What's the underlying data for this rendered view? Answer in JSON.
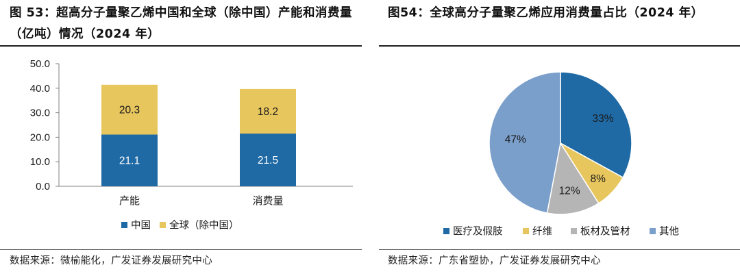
{
  "left_panel": {
    "title": "图 53：超高分子量聚乙烯中国和全球（除中国）产能和消费量（亿吨）情况（2024 年）",
    "source": "数据来源：微榆能化，广发证券发展研究中心"
  },
  "right_panel": {
    "title": "图54：全球高分子量聚乙烯应用消费量占比（2024 年）",
    "source": "数据来源：广东省塑协，广发证券发展研究中心"
  },
  "chart_data": [
    {
      "type": "bar",
      "stacked": true,
      "categories": [
        "产能",
        "消费量"
      ],
      "series": [
        {
          "name": "中国",
          "values": [
            21.1,
            21.5
          ],
          "color": "#1f6aa5",
          "labels": [
            "21.1",
            "21.5"
          ]
        },
        {
          "name": "全球（除中国）",
          "values": [
            20.3,
            18.2
          ],
          "color": "#e8c65e",
          "labels": [
            "20.3",
            "18.2"
          ]
        }
      ],
      "y_ticks": [
        "0.0",
        "10.0",
        "20.0",
        "30.0",
        "40.0",
        "50.0"
      ],
      "ylim": [
        0,
        50
      ],
      "grid": false,
      "legend_position": "bottom"
    },
    {
      "type": "pie",
      "slices": [
        {
          "name": "医疗及假肢",
          "value": 33,
          "label": "33%",
          "color": "#1f6aa5"
        },
        {
          "name": "纤维",
          "value": 8,
          "label": "8%",
          "color": "#e8c65e"
        },
        {
          "name": "板材及管材",
          "value": 12,
          "label": "12%",
          "color": "#b5b5b5"
        },
        {
          "name": "其他",
          "value": 47,
          "label": "47%",
          "color": "#7b9fcb"
        }
      ],
      "legend_position": "bottom"
    }
  ]
}
